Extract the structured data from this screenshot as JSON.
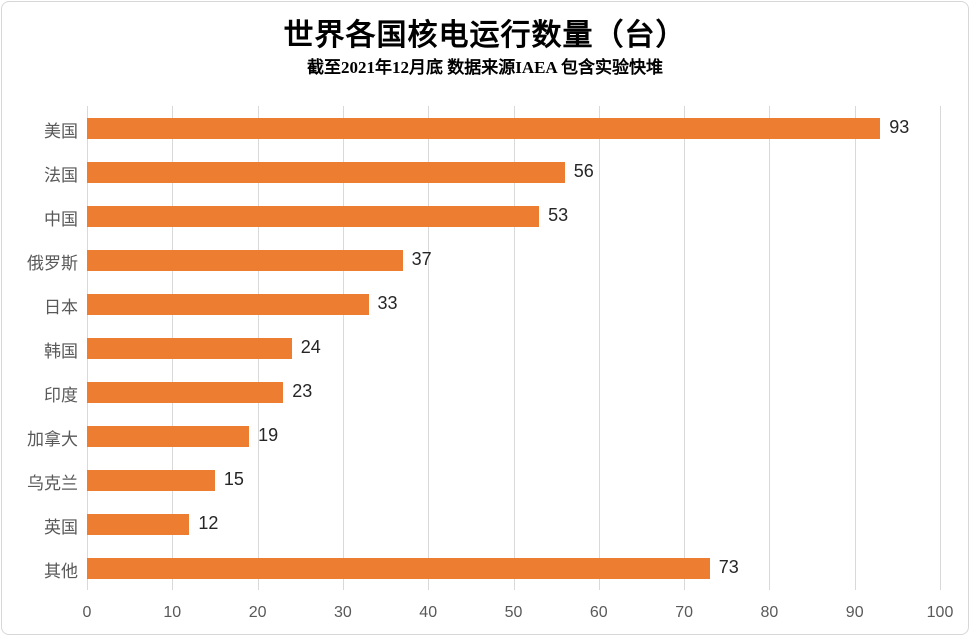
{
  "chart": {
    "title": "世界各国核电运行数量（台）",
    "subtitle": "截至2021年12月底 数据来源IAEA 包含实验快堆"
  },
  "chart_data": {
    "type": "bar",
    "orientation": "horizontal",
    "title": "世界各国核电运行数量（台）",
    "subtitle": "截至2021年12月底 数据来源IAEA 包含实验快堆",
    "categories": [
      "美国",
      "法国",
      "中国",
      "俄罗斯",
      "日本",
      "韩国",
      "印度",
      "加拿大",
      "乌克兰",
      "英国",
      "其他"
    ],
    "values": [
      93,
      56,
      53,
      37,
      33,
      24,
      23,
      19,
      15,
      12,
      73
    ],
    "xlabel": "",
    "ylabel": "",
    "xlim": [
      0,
      100
    ],
    "xticks": [
      0,
      10,
      20,
      30,
      40,
      50,
      60,
      70,
      80,
      90,
      100
    ],
    "grid": true,
    "legend": "none",
    "data_labels": true,
    "colors": {
      "bar": "#ed7d31",
      "gridline": "#d9d9d9",
      "category_label": "#595959",
      "tick_label": "#595959",
      "value_label": "#262626",
      "title": "#000000",
      "border": "#d7d7d7"
    }
  }
}
